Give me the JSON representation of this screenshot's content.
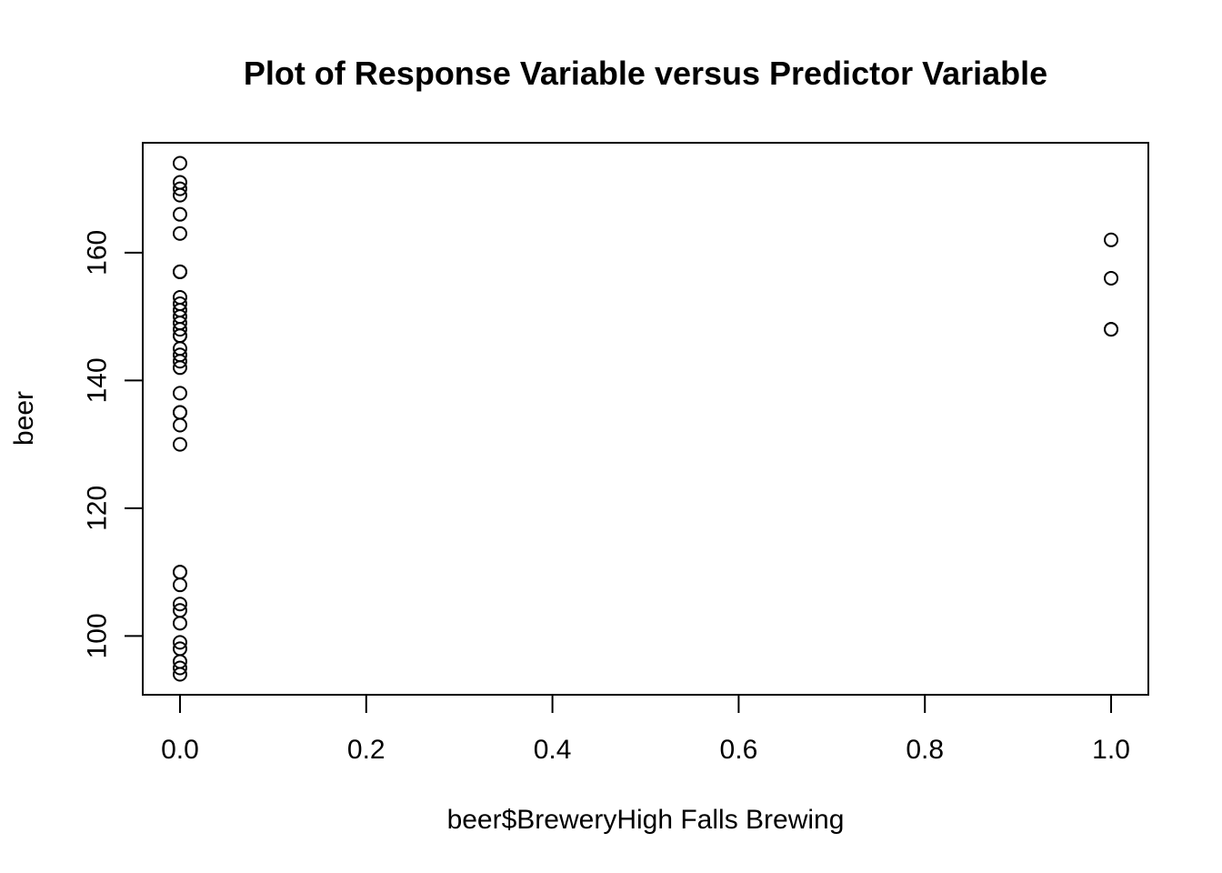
{
  "chart_data": {
    "type": "scatter",
    "title": "Plot of Response Variable versus Predictor Variable",
    "xlabel": "beer$BreweryHigh Falls Brewing",
    "ylabel": "beer",
    "xlim": [
      -0.04,
      1.04
    ],
    "ylim": [
      90.8,
      177.2
    ],
    "x_ticks": [
      0.0,
      0.2,
      0.4,
      0.6,
      0.8,
      1.0
    ],
    "x_tick_labels": [
      "0.0",
      "0.2",
      "0.4",
      "0.6",
      "0.8",
      "1.0"
    ],
    "y_ticks": [
      100,
      120,
      140,
      160
    ],
    "y_tick_labels": [
      "100",
      "120",
      "140",
      "160"
    ],
    "grid": false,
    "marker": "open-circle",
    "color": "#000000",
    "points": [
      {
        "x": 0,
        "y": 174
      },
      {
        "x": 0,
        "y": 171
      },
      {
        "x": 0,
        "y": 170
      },
      {
        "x": 0,
        "y": 169
      },
      {
        "x": 0,
        "y": 166
      },
      {
        "x": 0,
        "y": 163
      },
      {
        "x": 0,
        "y": 157
      },
      {
        "x": 0,
        "y": 157
      },
      {
        "x": 0,
        "y": 153
      },
      {
        "x": 0,
        "y": 152
      },
      {
        "x": 0,
        "y": 151
      },
      {
        "x": 0,
        "y": 150
      },
      {
        "x": 0,
        "y": 149
      },
      {
        "x": 0,
        "y": 148
      },
      {
        "x": 0,
        "y": 147
      },
      {
        "x": 0,
        "y": 147
      },
      {
        "x": 0,
        "y": 145
      },
      {
        "x": 0,
        "y": 144
      },
      {
        "x": 0,
        "y": 143
      },
      {
        "x": 0,
        "y": 142
      },
      {
        "x": 0,
        "y": 138
      },
      {
        "x": 0,
        "y": 135
      },
      {
        "x": 0,
        "y": 135
      },
      {
        "x": 0,
        "y": 133
      },
      {
        "x": 0,
        "y": 130
      },
      {
        "x": 0,
        "y": 110
      },
      {
        "x": 0,
        "y": 110
      },
      {
        "x": 0,
        "y": 108
      },
      {
        "x": 0,
        "y": 105
      },
      {
        "x": 0,
        "y": 104
      },
      {
        "x": 0,
        "y": 102
      },
      {
        "x": 0,
        "y": 99
      },
      {
        "x": 0,
        "y": 98
      },
      {
        "x": 0,
        "y": 96
      },
      {
        "x": 0,
        "y": 95
      },
      {
        "x": 0,
        "y": 94
      },
      {
        "x": 1,
        "y": 162
      },
      {
        "x": 1,
        "y": 156
      },
      {
        "x": 1,
        "y": 148
      },
      {
        "x": 1,
        "y": 148
      }
    ]
  }
}
